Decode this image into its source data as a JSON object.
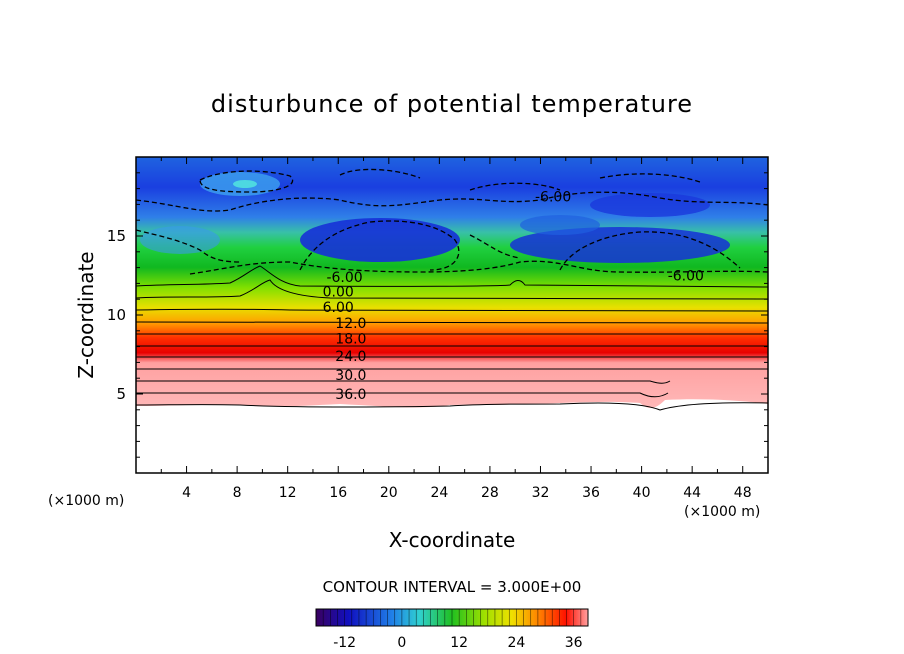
{
  "chart_data": {
    "type": "heatmap",
    "title": "disturbunce of potential temperature",
    "xlabel": "X-coordinate",
    "ylabel": "Z-coordinate",
    "x_unit_left": "(×1000 m)",
    "x_unit_right": "(×1000 m)",
    "xlim": [
      0,
      50
    ],
    "ylim": [
      0,
      20
    ],
    "x_ticks": [
      "4",
      "8",
      "12",
      "16",
      "20",
      "24",
      "28",
      "32",
      "36",
      "40",
      "44",
      "48"
    ],
    "y_ticks": [
      "5",
      "10",
      "15"
    ],
    "contour_interval_text": "CONTOUR INTERVAL = 3.000E+00",
    "contour_labels": [
      {
        "x": 43.5,
        "z": 12.5,
        "text": "-6.00"
      },
      {
        "x": 33.0,
        "z": 17.5,
        "text": "-6.00"
      },
      {
        "x": 16.5,
        "z": 12.4,
        "text": "-6.00"
      },
      {
        "x": 16.0,
        "z": 11.5,
        "text": "0.00"
      },
      {
        "x": 16.0,
        "z": 10.5,
        "text": "6.00"
      },
      {
        "x": 17.0,
        "z": 9.5,
        "text": "12.0"
      },
      {
        "x": 17.0,
        "z": 8.5,
        "text": "18.0"
      },
      {
        "x": 17.0,
        "z": 7.4,
        "text": "24.0"
      },
      {
        "x": 17.0,
        "z": 6.2,
        "text": "30.0"
      },
      {
        "x": 17.0,
        "z": 5.0,
        "text": "36.0"
      }
    ],
    "colorbar": {
      "range": [
        -18,
        39
      ],
      "tick_labels": [
        "-12",
        "0",
        "12",
        "24",
        "36"
      ],
      "tick_values": [
        -12,
        0,
        12,
        24,
        36
      ]
    },
    "colors": {
      "cold": "#1a2fd8",
      "zero": "#2fc8d8",
      "warm_mid": "#e8d800",
      "hot": "#ff0000",
      "hottest": "#ffb0b0"
    }
  }
}
